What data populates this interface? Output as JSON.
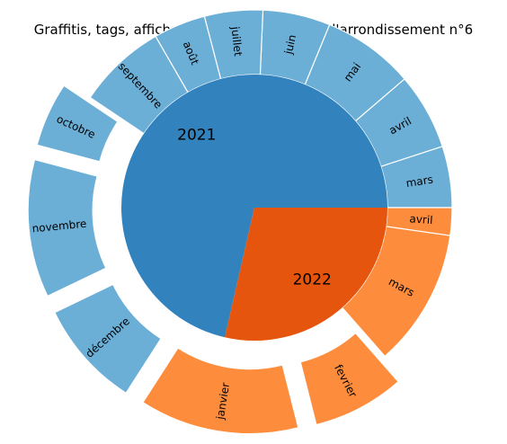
{
  "chart_data": {
    "type": "pie",
    "subtype": "nested-donut",
    "title": "Graffitis, tags, affiches et autocollants dans l'arrondissement n°6",
    "inner_ring": {
      "categories": [
        "2021",
        "2022"
      ],
      "values": [
        10,
        4
      ],
      "colors": [
        "#3182bd",
        "#e6550d"
      ]
    },
    "outer_ring": {
      "categories": [
        "mars",
        "avril",
        "mai",
        "juin",
        "juillet",
        "août",
        "septembre",
        "octobre",
        "novembre",
        "décembre",
        "janvier",
        "fevrier",
        "mars",
        "avril"
      ],
      "values": [
        10,
        12.5,
        15,
        11,
        9.5,
        8.5,
        14.5,
        10.5,
        22.5,
        17.5,
        26,
        15,
        22.5,
        4.5
      ],
      "years": [
        "2021",
        "2021",
        "2021",
        "2021",
        "2021",
        "2021",
        "2021",
        "2021",
        "2021",
        "2021",
        "2022",
        "2022",
        "2022",
        "2022"
      ],
      "exploded": [
        false,
        false,
        false,
        false,
        false,
        false,
        false,
        true,
        true,
        true,
        true,
        true,
        false,
        false
      ],
      "colors": [
        "#6baed6",
        "#6baed6",
        "#6baed6",
        "#6baed6",
        "#6baed6",
        "#6baed6",
        "#6baed6",
        "#6baed6",
        "#6baed6",
        "#6baed6",
        "#fd8d3c",
        "#fd8d3c",
        "#fd8d3c",
        "#fd8d3c"
      ]
    },
    "legend": "none",
    "grid": false
  }
}
